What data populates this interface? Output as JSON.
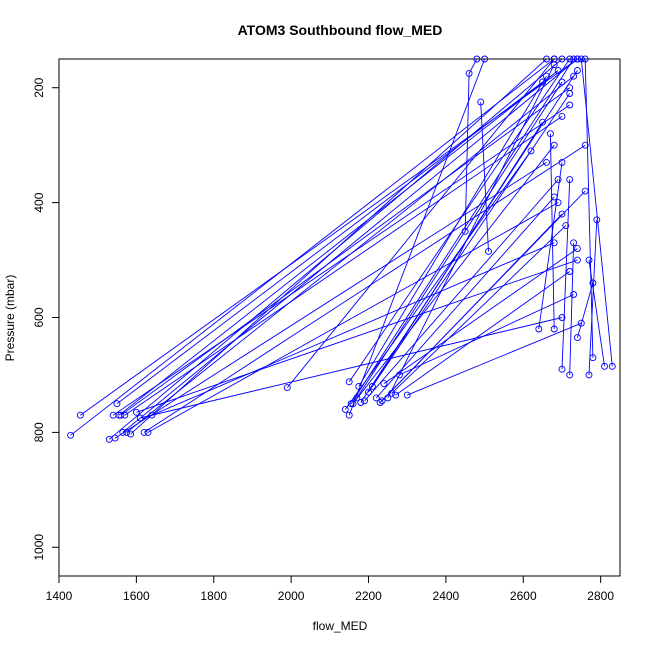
{
  "chart_data": {
    "type": "line",
    "title": "ATOM3 Southbound flow_MED",
    "xlabel": "flow_MED",
    "ylabel": "Pressure (mbar)",
    "xlim": [
      1400,
      2850
    ],
    "ylim": [
      1050,
      150
    ],
    "y_reversed": true,
    "x_ticks": [
      1400,
      1600,
      1800,
      2000,
      2200,
      2400,
      2600,
      2800
    ],
    "y_ticks": [
      200,
      400,
      600,
      800,
      1000
    ],
    "grid": false,
    "legend": "none",
    "series_color": "#0000ff",
    "marker": "open-circle",
    "series": [
      {
        "x": [
          1430,
          2680
        ],
        "y": [
          805,
          150
        ]
      },
      {
        "x": [
          1455,
          2740
        ],
        "y": [
          770,
          150
        ]
      },
      {
        "x": [
          1530,
          2700
        ],
        "y": [
          812,
          150
        ]
      },
      {
        "x": [
          1545,
          2660
        ],
        "y": [
          810,
          330
        ]
      },
      {
        "x": [
          1540,
          2720
        ],
        "y": [
          770,
          230
        ]
      },
      {
        "x": [
          1550,
          2650
        ],
        "y": [
          750,
          190
        ]
      },
      {
        "x": [
          1555,
          2690
        ],
        "y": [
          770,
          170
        ]
      },
      {
        "x": [
          1560,
          2720
        ],
        "y": [
          770,
          200
        ]
      },
      {
        "x": [
          1565,
          2740
        ],
        "y": [
          800,
          150
        ]
      },
      {
        "x": [
          1570,
          2700
        ],
        "y": [
          770,
          250
        ]
      },
      {
        "x": [
          1575,
          2730
        ],
        "y": [
          800,
          180
        ]
      },
      {
        "x": [
          1585,
          2660
        ],
        "y": [
          803,
          150
        ]
      },
      {
        "x": [
          1620,
          2760
        ],
        "y": [
          800,
          300
        ]
      },
      {
        "x": [
          1630,
          2690
        ],
        "y": [
          800,
          400
        ]
      },
      {
        "x": [
          1640,
          2680
        ],
        "y": [
          770,
          470
        ]
      },
      {
        "x": [
          1600,
          2740
        ],
        "y": [
          765,
          500
        ]
      },
      {
        "x": [
          1610,
          2700
        ],
        "y": [
          775,
          600
        ]
      },
      {
        "x": [
          1990,
          2680
        ],
        "y": [
          722,
          150
        ]
      },
      {
        "x": [
          2140,
          2620
        ],
        "y": [
          760,
          310
        ]
      },
      {
        "x": [
          2150,
          2500
        ],
        "y": [
          770,
          150
        ]
      },
      {
        "x": [
          2150,
          2720
        ],
        "y": [
          712,
          150
        ]
      },
      {
        "x": [
          2155,
          2730
        ],
        "y": [
          750,
          150
        ]
      },
      {
        "x": [
          2160,
          2680
        ],
        "y": [
          750,
          300
        ]
      },
      {
        "x": [
          2170,
          2700
        ],
        "y": [
          740,
          190
        ]
      },
      {
        "x": [
          2175,
          2660
        ],
        "y": [
          720,
          180
        ]
      },
      {
        "x": [
          2180,
          2740
        ],
        "y": [
          748,
          170
        ]
      },
      {
        "x": [
          2190,
          2690
        ],
        "y": [
          745,
          360
        ]
      },
      {
        "x": [
          2200,
          2650
        ],
        "y": [
          730,
          260
        ]
      },
      {
        "x": [
          2210,
          2720
        ],
        "y": [
          720,
          210
        ]
      },
      {
        "x": [
          2220,
          2680
        ],
        "y": [
          740,
          390
        ]
      },
      {
        "x": [
          2230,
          2760
        ],
        "y": [
          748,
          380
        ]
      },
      {
        "x": [
          2235,
          2700
        ],
        "y": [
          745,
          420
        ]
      },
      {
        "x": [
          2240,
          2740
        ],
        "y": [
          715,
          480
        ]
      },
      {
        "x": [
          2250,
          2680
        ],
        "y": [
          740,
          160
        ]
      },
      {
        "x": [
          2260,
          2710
        ],
        "y": [
          732,
          440
        ]
      },
      {
        "x": [
          2270,
          2720
        ],
        "y": [
          735,
          520
        ]
      },
      {
        "x": [
          2280,
          2730
        ],
        "y": [
          700,
          560
        ]
      },
      {
        "x": [
          2300,
          2750
        ],
        "y": [
          735,
          610
        ]
      },
      {
        "x": [
          2450,
          2460,
          2480
        ],
        "y": [
          450,
          175,
          150
        ]
      },
      {
        "x": [
          2510,
          2490
        ],
        "y": [
          485,
          225
        ]
      },
      {
        "x": [
          2640,
          2700
        ],
        "y": [
          620,
          330
        ]
      },
      {
        "x": [
          2680,
          2670
        ],
        "y": [
          620,
          280
        ]
      },
      {
        "x": [
          2700,
          2720
        ],
        "y": [
          690,
          360
        ]
      },
      {
        "x": [
          2720,
          2730
        ],
        "y": [
          700,
          470
        ]
      },
      {
        "x": [
          2740,
          2780
        ],
        "y": [
          635,
          540
        ]
      },
      {
        "x": [
          2770,
          2790
        ],
        "y": [
          700,
          430
        ]
      },
      {
        "x": [
          2780,
          2760
        ],
        "y": [
          670,
          150
        ]
      },
      {
        "x": [
          2810,
          2770
        ],
        "y": [
          685,
          500
        ]
      },
      {
        "x": [
          2830,
          2750
        ],
        "y": [
          685,
          150
        ]
      }
    ]
  }
}
